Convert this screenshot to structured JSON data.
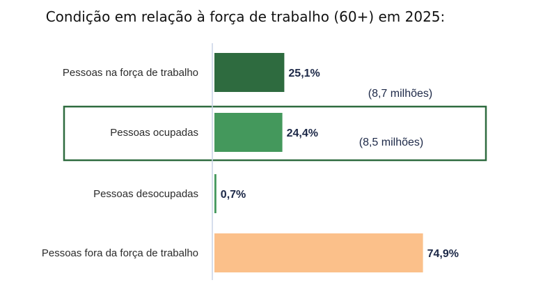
{
  "chart_data": {
    "type": "bar",
    "orientation": "horizontal",
    "title": "Condição em relação à força de trabalho (60+) em 2025:",
    "categories": [
      "Pessoas na força de trabalho",
      "Pessoas ocupadas",
      "Pessoas desocupadas",
      "Pessoas fora da força de trabalho"
    ],
    "values": [
      25.1,
      24.4,
      0.7,
      74.9
    ],
    "value_labels": [
      "25,1%",
      "24,4%",
      "0,7%",
      "74,9%"
    ],
    "bar_colors": [
      "#2e6b3f",
      "#44985c",
      "#44985c",
      "#fbc08a"
    ],
    "annotations": [
      {
        "category_index": 0,
        "text": "(8,7 milhões)"
      },
      {
        "category_index": 1,
        "text": "(8,5 milhões)"
      }
    ],
    "highlighted_category_index": 1,
    "highlight_color": "#2e6b3f",
    "xlim": [
      0,
      100
    ],
    "grid": false
  }
}
